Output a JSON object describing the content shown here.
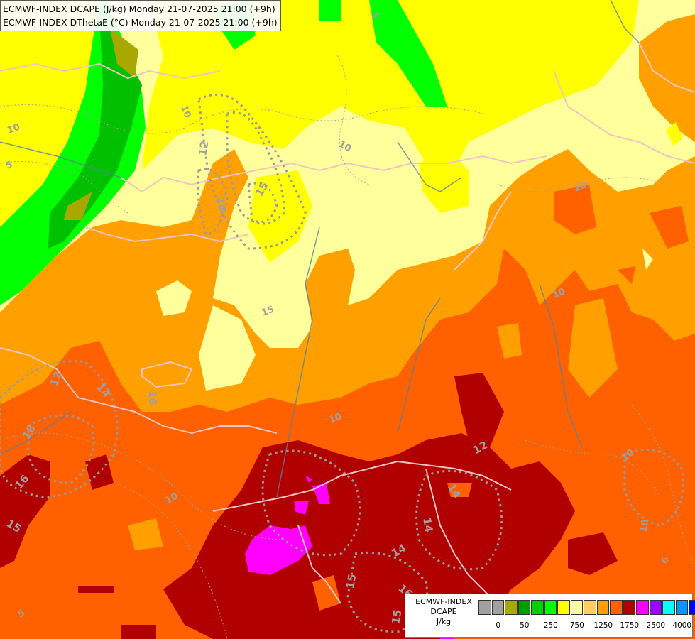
{
  "header": {
    "line1": "ECMWF-INDEX DCAPE (J/kg) Monday 21-07-2025 21:00 (+9h)",
    "line2": "ECMWF-INDEX DThetaE (°C) Monday 21-07-2025 21:00 (+9h)"
  },
  "legend": {
    "title_line1": "ECMWF-INDEX",
    "title_line2": "DCAPE",
    "units": "J/kg",
    "colors": [
      "#a0a0a0",
      "#a0a0a0",
      "#a8a800",
      "#009c00",
      "#00d000",
      "#00ff00",
      "#ffff00",
      "#ffff9c",
      "#ffd060",
      "#ffa000",
      "#ff6000",
      "#b00000",
      "#ff00ff",
      "#a000ff",
      "#00ffff",
      "#0098ff",
      "#0000ff",
      "#000090"
    ],
    "ticks": [
      "0",
      "50",
      "250",
      "750",
      "1250",
      "1750",
      "2500",
      "4000"
    ]
  },
  "map": {
    "contour_labels": [
      "10",
      "5",
      "10",
      "12",
      "14",
      "15",
      "10",
      "5",
      "10",
      "15",
      "10",
      "12",
      "14",
      "16",
      "15",
      "16",
      "18",
      "14",
      "12",
      "10",
      "14",
      "15",
      "16",
      "14",
      "15",
      "10",
      "5",
      "10",
      "10",
      "6"
    ]
  }
}
